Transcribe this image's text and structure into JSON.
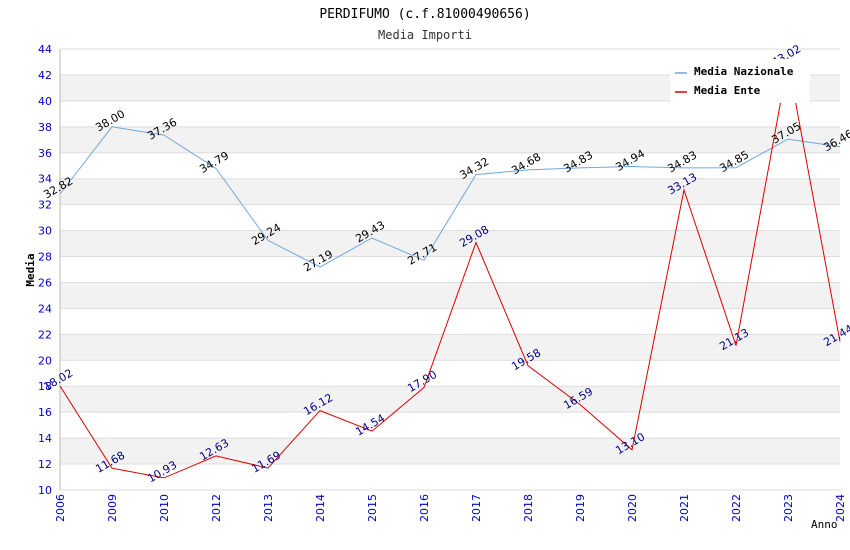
{
  "chart_data": {
    "type": "line",
    "title": "PERDIFUMO (c.f.81000490656)",
    "subtitle": "Media Importi",
    "xlabel": "Anno",
    "ylabel": "Media",
    "ylim": [
      10,
      44
    ],
    "ytick_step": 2,
    "grid": true,
    "legend_position": "top-right",
    "categories": [
      "2006",
      "2009",
      "2010",
      "2012",
      "2013",
      "2014",
      "2015",
      "2016",
      "2017",
      "2018",
      "2019",
      "2020",
      "2021",
      "2022",
      "2023",
      "2024"
    ],
    "series": [
      {
        "name": "Media Nazionale",
        "color": "#6fa8dc",
        "label_color": "#000000",
        "values": [
          32.82,
          38.0,
          37.36,
          34.79,
          29.24,
          27.19,
          29.43,
          27.71,
          34.32,
          34.68,
          34.83,
          34.94,
          34.83,
          34.85,
          37.05,
          36.46
        ],
        "labels": [
          "32.82",
          "38.00",
          "37.36",
          "34.79",
          "29.24",
          "27.19",
          "29.43",
          "27.71",
          "34.32",
          "34.68",
          "34.83",
          "34.94",
          "34.83",
          "34.85",
          "37.05",
          "36.46"
        ]
      },
      {
        "name": "Media Ente",
        "color": "#dd0000",
        "label_color": "#00008b",
        "values": [
          18.02,
          11.68,
          10.93,
          12.63,
          11.69,
          16.12,
          14.54,
          17.9,
          29.08,
          19.58,
          16.59,
          13.1,
          33.13,
          21.13,
          43.02,
          21.44
        ],
        "labels": [
          "18.02",
          "11.68",
          "10.93",
          "12.63",
          "11.69",
          "16.12",
          "14.54",
          "17.90",
          "29.08",
          "19.58",
          "16.59",
          "13.10",
          "33.13",
          "21.13",
          "43.02",
          "21.44"
        ]
      }
    ]
  }
}
